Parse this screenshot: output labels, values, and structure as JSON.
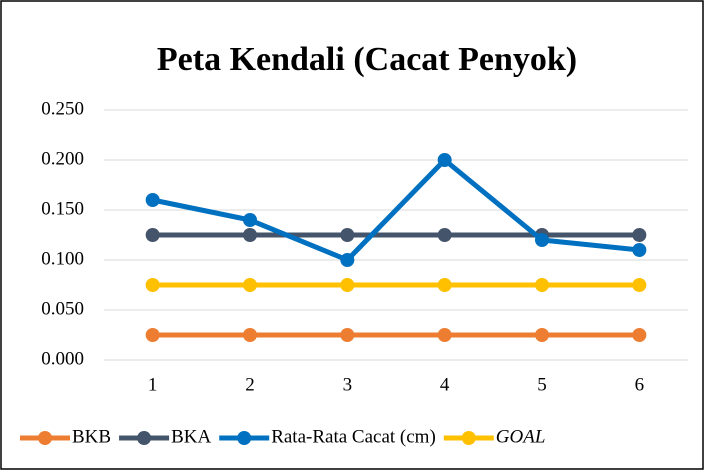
{
  "chart_data": {
    "type": "line",
    "title": "Peta Kendali (Cacat Penyok)",
    "categories": [
      "1",
      "2",
      "3",
      "4",
      "5",
      "6"
    ],
    "series": [
      {
        "name": "BKB",
        "color": "#ED7D31",
        "values": [
          0.025,
          0.025,
          0.025,
          0.025,
          0.025,
          0.025
        ]
      },
      {
        "name": "BKA",
        "color": "#44546A",
        "values": [
          0.125,
          0.125,
          0.125,
          0.125,
          0.125,
          0.125
        ]
      },
      {
        "name": "Rata-Rata Cacat (cm)",
        "color": "#0070C0",
        "values": [
          0.16,
          0.14,
          0.1,
          0.2,
          0.12,
          0.11
        ]
      },
      {
        "name": "GOAL",
        "color": "#FFC000",
        "values": [
          0.075,
          0.075,
          0.075,
          0.075,
          0.075,
          0.075
        ]
      }
    ],
    "ylim": [
      0,
      0.25
    ],
    "yticks": [
      {
        "value": 0,
        "label": "0.000"
      },
      {
        "value": 0.05,
        "label": "0.050"
      },
      {
        "value": 0.1,
        "label": "0.100"
      },
      {
        "value": 0.15,
        "label": "0.150"
      },
      {
        "value": 0.2,
        "label": "0.200"
      },
      {
        "value": 0.25,
        "label": "0.250"
      }
    ],
    "grid": true,
    "legend": "bottom"
  }
}
